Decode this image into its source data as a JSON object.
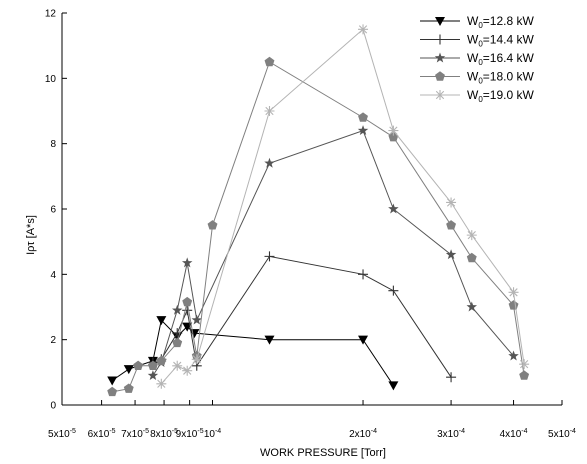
{
  "chart_data": {
    "type": "line",
    "xlabel": "WORK PRESSURE [Torr]",
    "ylabel": "Iρτ [A*s]",
    "x_scale": "log",
    "xlim": [
      5e-05,
      0.0005
    ],
    "ylim": [
      0,
      12
    ],
    "x_ticks": [
      {
        "value": 5e-05,
        "label": "5x10-5"
      },
      {
        "value": 6e-05,
        "label": "6x10-5"
      },
      {
        "value": 7e-05,
        "label": "7x10-5"
      },
      {
        "value": 8e-05,
        "label": "8x10-5"
      },
      {
        "value": 9e-05,
        "label": "9x10-5"
      },
      {
        "value": 0.0001,
        "label": "10-4"
      },
      {
        "value": 0.0002,
        "label": "2x10-4"
      },
      {
        "value": 0.0003,
        "label": "3x10-4"
      },
      {
        "value": 0.0004,
        "label": "4x10-4"
      },
      {
        "value": 0.0005,
        "label": "5x10-4"
      }
    ],
    "y_ticks": [
      0,
      2,
      4,
      6,
      8,
      10,
      12
    ],
    "grid": false,
    "legend_position": "top-right",
    "series": [
      {
        "name": "W0=12.8 kW",
        "color": "#000000",
        "marker": "triangle-down",
        "x": [
          6.3e-05,
          6.8e-05,
          7.6e-05,
          7.9e-05,
          8.5e-05,
          8.9e-05,
          9.2e-05,
          0.00013,
          0.0002,
          0.00023
        ],
        "y": [
          0.75,
          1.1,
          1.35,
          2.6,
          2.1,
          2.4,
          2.2,
          2.0,
          2.0,
          0.6
        ]
      },
      {
        "name": "W0=14.4 kW",
        "color": "#333333",
        "marker": "plus",
        "x": [
          7.6e-05,
          7.9e-05,
          8.5e-05,
          8.9e-05,
          9.3e-05,
          0.00013,
          0.0002,
          0.00023,
          0.0003
        ],
        "y": [
          1.3,
          1.4,
          2.2,
          2.9,
          1.2,
          4.55,
          4.0,
          3.5,
          0.85
        ]
      },
      {
        "name": "W0=16.4 kW",
        "color": "#555555",
        "marker": "star",
        "x": [
          7.6e-05,
          7.9e-05,
          8.5e-05,
          8.9e-05,
          9.3e-05,
          0.00013,
          0.0002,
          0.00023,
          0.0003,
          0.00033,
          0.0004
        ],
        "y": [
          0.9,
          1.3,
          2.9,
          4.35,
          2.6,
          7.4,
          8.4,
          6.0,
          4.6,
          3.0,
          1.5
        ]
      },
      {
        "name": "W0=18.0 kW",
        "color": "#808080",
        "marker": "pentagon",
        "x": [
          6.3e-05,
          6.8e-05,
          7.1e-05,
          7.6e-05,
          7.9e-05,
          8.5e-05,
          8.9e-05,
          9.3e-05,
          0.0001,
          0.00013,
          0.0002,
          0.00023,
          0.0003,
          0.00033,
          0.0004,
          0.00042
        ],
        "y": [
          0.4,
          0.5,
          1.2,
          1.2,
          1.35,
          1.9,
          3.15,
          1.5,
          5.5,
          10.5,
          8.8,
          8.2,
          5.5,
          4.5,
          3.05,
          0.9
        ]
      },
      {
        "name": "W0=19.0 kW",
        "color": "#b4b4b4",
        "marker": "asterisk",
        "x": [
          7.9e-05,
          8.5e-05,
          8.9e-05,
          9.3e-05,
          0.00013,
          0.0002,
          0.00023,
          0.0003,
          0.00033,
          0.0004,
          0.00042
        ],
        "y": [
          0.65,
          1.2,
          1.05,
          1.4,
          9.0,
          11.5,
          8.4,
          6.2,
          5.2,
          3.45,
          1.25
        ]
      }
    ]
  }
}
